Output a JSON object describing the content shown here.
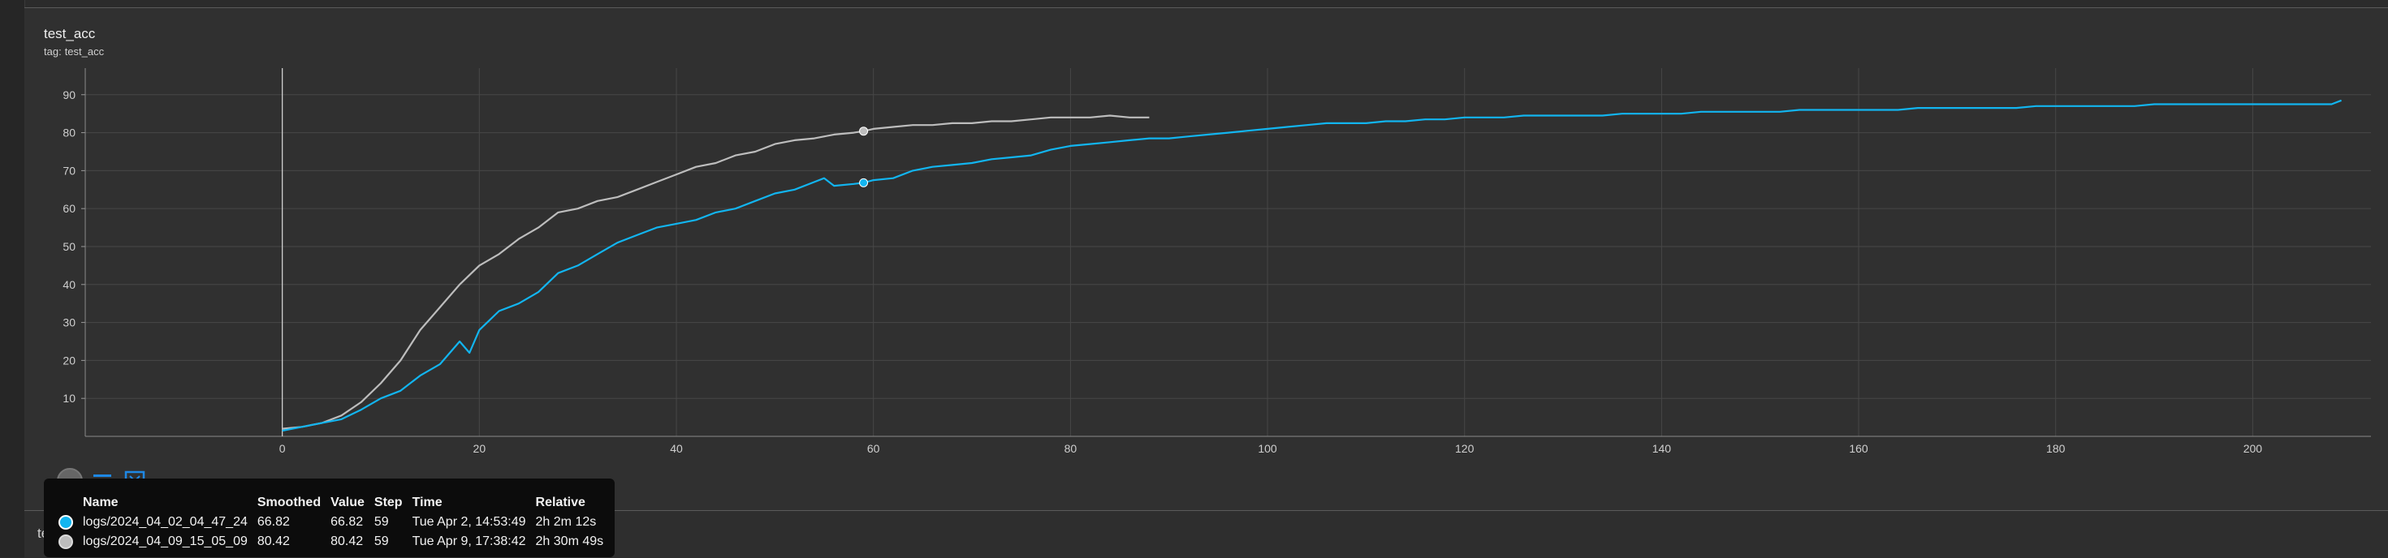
{
  "card": {
    "title": "test_acc",
    "tag_label": "tag:",
    "tag_value": "test_acc"
  },
  "next_card": {
    "title_fragment": "te"
  },
  "toolbar": {
    "buttons": [
      {
        "icon": "fullscreen-icon"
      },
      {
        "icon": "legend-lines-icon"
      },
      {
        "icon": "fit-domain-icon"
      }
    ]
  },
  "colors": {
    "run1": "#12b5f0",
    "run2": "#bdbdbd",
    "background": "#303030",
    "grid": "#464646"
  },
  "tooltip": {
    "headers": [
      "Name",
      "Smoothed",
      "Value",
      "Step",
      "Time",
      "Relative"
    ],
    "rows": [
      {
        "name": "logs/2024_04_02_04_47_24",
        "smoothed": "66.82",
        "value": "66.82",
        "step": "59",
        "time": "Tue Apr 2, 14:53:49",
        "relative": "2h 2m 12s"
      },
      {
        "name": "logs/2024_04_09_15_05_09",
        "smoothed": "80.42",
        "value": "80.42",
        "step": "59",
        "time": "Tue Apr 9, 17:38:42",
        "relative": "2h 30m 49s"
      }
    ]
  },
  "chart_data": {
    "type": "line",
    "title": "test_acc",
    "xlim": [
      -20,
      212
    ],
    "ylim": [
      0,
      97
    ],
    "xticks": [
      0,
      20,
      40,
      60,
      80,
      100,
      120,
      140,
      160,
      180,
      200
    ],
    "yticks": [
      10,
      20,
      30,
      40,
      50,
      60,
      70,
      80,
      90
    ],
    "grid": true,
    "hover_step": 59,
    "series": [
      {
        "name": "logs/2024_04_02_04_47_24",
        "color": "#12b5f0",
        "x": [
          0,
          2,
          4,
          6,
          8,
          10,
          12,
          14,
          16,
          18,
          19,
          20,
          22,
          24,
          26,
          28,
          30,
          32,
          34,
          36,
          38,
          40,
          42,
          44,
          46,
          48,
          50,
          52,
          54,
          55,
          56,
          58,
          59,
          60,
          62,
          64,
          66,
          68,
          70,
          72,
          74,
          76,
          78,
          80,
          82,
          84,
          86,
          88,
          90,
          92,
          94,
          96,
          98,
          100,
          102,
          104,
          106,
          108,
          110,
          112,
          114,
          116,
          118,
          120,
          122,
          124,
          126,
          128,
          130,
          132,
          134,
          136,
          138,
          140,
          142,
          144,
          146,
          148,
          150,
          152,
          154,
          156,
          158,
          160,
          162,
          164,
          166,
          168,
          170,
          172,
          174,
          176,
          178,
          180,
          182,
          184,
          186,
          188,
          190,
          192,
          194,
          196,
          198,
          200,
          202,
          204,
          206,
          208,
          209
        ],
        "y": [
          1.5,
          2.5,
          3.5,
          4.5,
          7,
          10,
          12,
          16,
          19,
          25,
          22,
          28,
          33,
          35,
          38,
          43,
          45,
          48,
          51,
          53,
          55,
          56,
          57,
          59,
          60,
          62,
          64,
          65,
          67,
          68,
          66,
          66.5,
          66.8,
          67.5,
          68,
          70,
          71,
          71.5,
          72,
          73,
          73.5,
          74,
          75.5,
          76.5,
          77,
          77.5,
          78,
          78.5,
          78.5,
          79,
          79.5,
          80,
          80.5,
          81,
          81.5,
          82,
          82.5,
          82.5,
          82.5,
          83,
          83,
          83.5,
          83.5,
          84,
          84,
          84,
          84.5,
          84.5,
          84.5,
          84.5,
          84.5,
          85,
          85,
          85,
          85,
          85.5,
          85.5,
          85.5,
          85.5,
          85.5,
          86,
          86,
          86,
          86,
          86,
          86,
          86.5,
          86.5,
          86.5,
          86.5,
          86.5,
          86.5,
          87,
          87,
          87,
          87,
          87,
          87,
          87.5,
          87.5,
          87.5,
          87.5,
          87.5,
          87.5,
          87.5,
          87.5,
          87.5,
          87.5,
          88.5
        ]
      },
      {
        "name": "logs/2024_04_09_15_05_09",
        "color": "#bdbdbd",
        "x": [
          0,
          2,
          4,
          6,
          8,
          10,
          12,
          14,
          16,
          18,
          20,
          22,
          24,
          26,
          28,
          30,
          32,
          34,
          36,
          38,
          40,
          42,
          44,
          46,
          48,
          50,
          52,
          54,
          56,
          58,
          59,
          60,
          62,
          64,
          66,
          68,
          70,
          72,
          74,
          76,
          78,
          80,
          82,
          84,
          86,
          88
        ],
        "y": [
          2,
          2.5,
          3.5,
          5.5,
          9,
          14,
          20,
          28,
          34,
          40,
          45,
          48,
          52,
          55,
          59,
          60,
          62,
          63,
          65,
          67,
          69,
          71,
          72,
          74,
          75,
          77,
          78,
          78.5,
          79.5,
          80,
          80.4,
          81,
          81.5,
          82,
          82,
          82.5,
          82.5,
          83,
          83,
          83.5,
          84,
          84,
          84,
          84.5,
          84,
          84
        ]
      }
    ]
  }
}
